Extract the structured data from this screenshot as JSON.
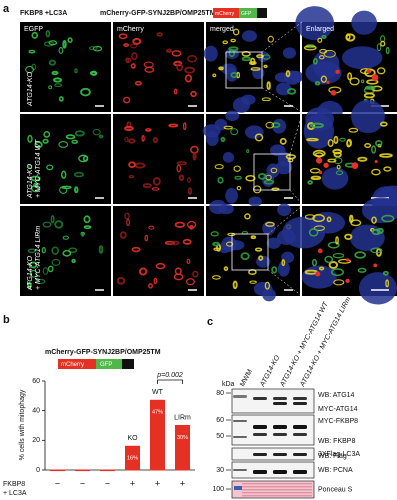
{
  "panel_a": {
    "label": "a",
    "treatment": "FKBP8 +LC3A",
    "reporter": "mCherry-GFP-SYNJ2BP/OMP25TM",
    "reporter_parts": [
      "mCherry",
      "GFP"
    ],
    "columns": [
      "EGFP",
      "mCherry",
      "merged",
      "Enlarged"
    ],
    "rows": [
      [
        "ATG14-KO"
      ],
      [
        "ATG14-KO",
        "+ MYC-ATG14 WT"
      ],
      [
        "ATG14-KO",
        "+ MYC-ATG14 LIRm"
      ]
    ]
  },
  "panel_b": {
    "label": "b",
    "type": "bar",
    "title": "mCherry-GFP-SYNJ2BP/OMP25TM",
    "reporter_parts": [
      "mCherry",
      "GFP"
    ],
    "y_label": "% cells with mitophagy",
    "values": [
      0,
      0,
      0,
      16,
      47,
      30
    ],
    "value_labels": [
      null,
      null,
      null,
      "16%",
      "47%",
      "30%"
    ],
    "bar_labels": [
      null,
      null,
      null,
      "KO",
      "WT",
      "LIRm"
    ],
    "color": "#e53024",
    "ylim": [
      0,
      60
    ],
    "yticks": [
      0,
      20,
      40,
      60
    ],
    "condition_label": [
      "FKBP8",
      "+ LC3A"
    ],
    "condition": [
      "−",
      "−",
      "−",
      "+",
      "+",
      "+"
    ],
    "significance": {
      "label": "p=0.002",
      "between": [
        4,
        5
      ]
    }
  },
  "panel_c": {
    "label": "c",
    "lanes": [
      "MWM",
      "ATG14-KO",
      "ATG14-KO + MYC-ATG14 WT",
      "ATG14-KO + MYC-ATG14 LIRm"
    ],
    "kda_label": "kDa",
    "blots": [
      {
        "markers": [
          "80"
        ],
        "labels": [
          "WB: ATG14",
          "MYC-ATG14"
        ]
      },
      {
        "markers": [
          "60",
          "50"
        ],
        "labels": [
          "MYC-FKBP8",
          "WB: FKBP8"
        ]
      },
      {
        "markers": [],
        "labels": [
          "3XFlag-LC3A",
          "WB: Flag"
        ]
      },
      {
        "markers": [
          "30"
        ],
        "labels": [
          "WB: PCNA"
        ]
      },
      {
        "markers": [
          "100"
        ],
        "labels": [
          "Ponceau S"
        ]
      }
    ]
  }
}
